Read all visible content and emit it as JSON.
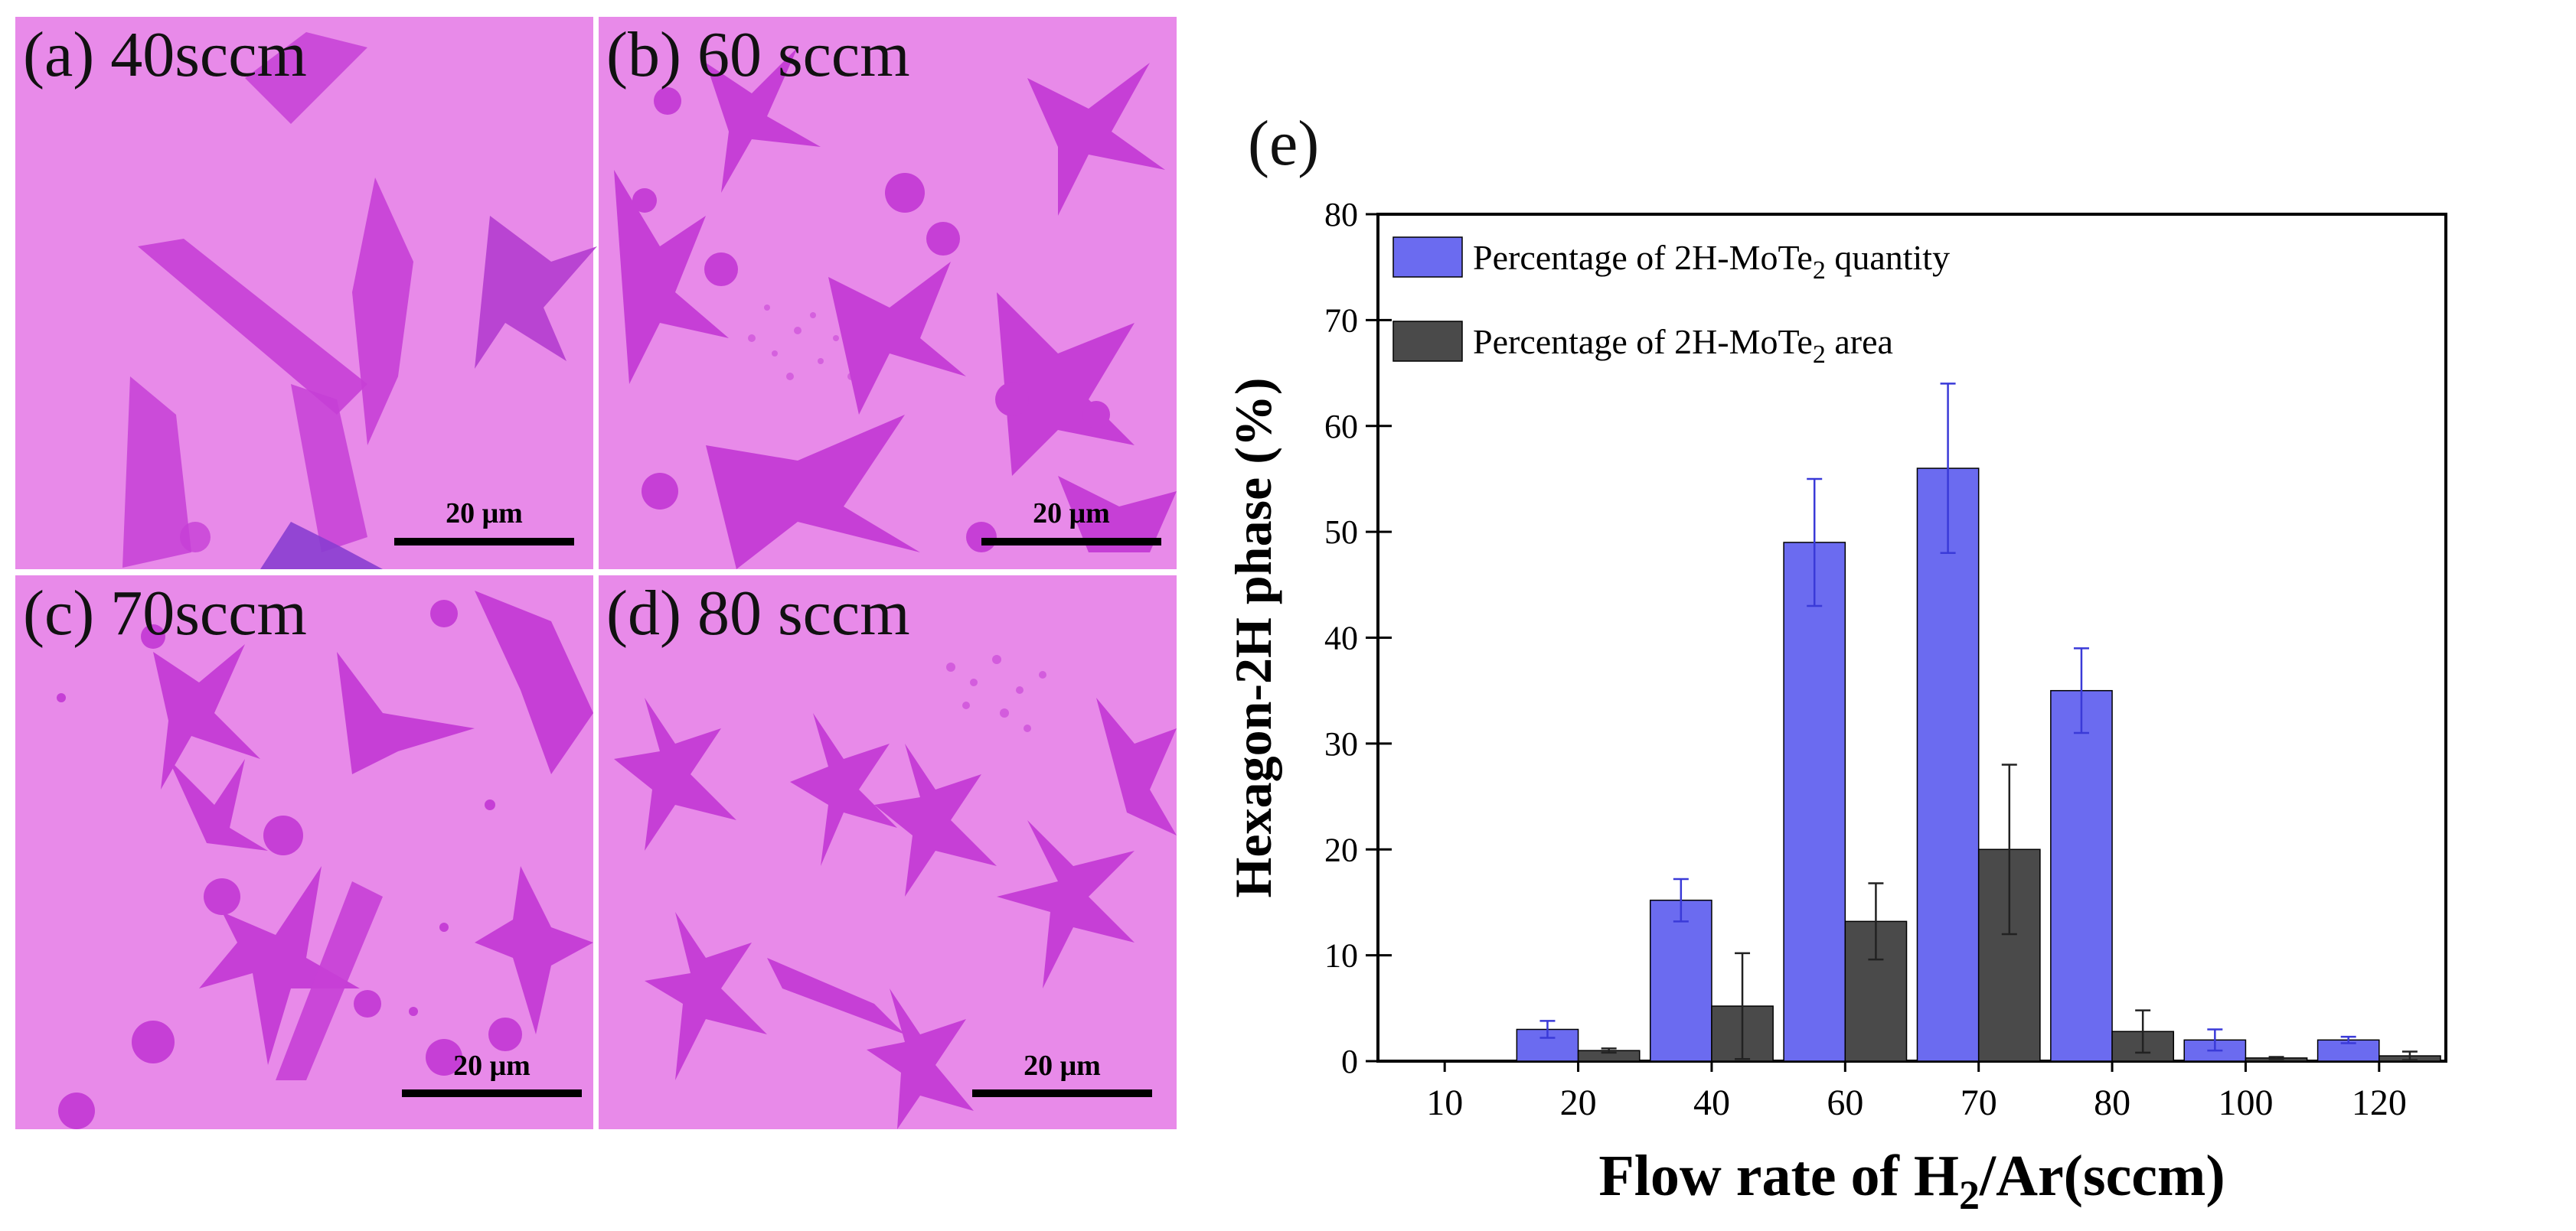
{
  "panels": [
    {
      "label": "(a) 40sccm",
      "scale": "20 μm"
    },
    {
      "label": "(b) 60 sccm",
      "scale": "20 μm"
    },
    {
      "label": "(c) 70sccm",
      "scale": "20 μm"
    },
    {
      "label": "(d) 80 sccm",
      "scale": "20 μm"
    }
  ],
  "colors": {
    "substrate": "#e88ae9",
    "flake": "#c63fd6",
    "series_quantity": "#6b6bf0",
    "series_area": "#4a4a4a"
  },
  "chart_data": {
    "type": "bar",
    "panel_label": "(e)",
    "categories": [
      "10",
      "20",
      "40",
      "60",
      "70",
      "80",
      "100",
      "120"
    ],
    "series": [
      {
        "name_main": "Percentage of 2H-MoTe",
        "name_sub": "2",
        "name_tail": " quantity",
        "values": [
          0,
          3.0,
          15.2,
          49.0,
          56.0,
          35.0,
          2.0,
          2.0
        ],
        "errors": [
          0,
          0.8,
          2.0,
          6.0,
          8.0,
          4.0,
          1.0,
          0.3
        ]
      },
      {
        "name_main": "Percentage of 2H-MoTe",
        "name_sub": "2",
        "name_tail": " area",
        "values": [
          0,
          1.0,
          5.2,
          13.2,
          20.0,
          2.8,
          0.3,
          0.5
        ],
        "errors": [
          0,
          0.2,
          5.0,
          3.6,
          8.0,
          2.0,
          0.1,
          0.4
        ]
      }
    ],
    "ylabel": "Hexagon-2H phase (%)",
    "xlabel_main": "Flow rate of H",
    "xlabel_sub": "2",
    "xlabel_tail": "/Ar(sccm)",
    "ylim": [
      0,
      80
    ],
    "yticks": [
      0,
      10,
      20,
      30,
      40,
      50,
      60,
      70,
      80
    ],
    "legend_position": "top-left"
  }
}
